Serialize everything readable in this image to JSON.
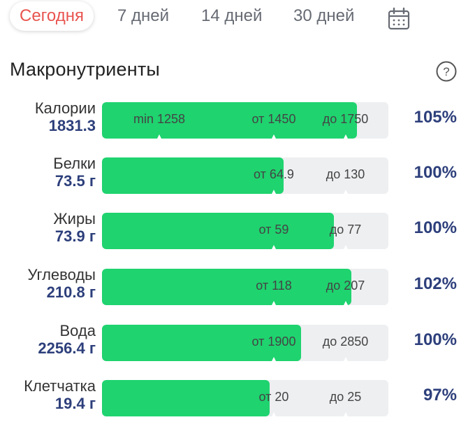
{
  "tabs": [
    {
      "label": "Сегодня",
      "active": true
    },
    {
      "label": "7 дней",
      "active": false
    },
    {
      "label": "14 дней",
      "active": false
    },
    {
      "label": "30 дней",
      "active": false
    }
  ],
  "section": {
    "title": "Макронутриенты"
  },
  "icons": {
    "calendar": "calendar-icon",
    "help": "help-icon"
  },
  "colors": {
    "accent": "#e8544f",
    "fill": "#1fd36f",
    "value": "#2d3f7b",
    "track": "#eeeff1"
  },
  "nutrients": [
    {
      "name": "Калории",
      "value": "1831.3",
      "percent": "105%",
      "fill_fraction": 0.89,
      "markers": [
        {
          "text": "min 1258",
          "pos": 0.2
        },
        {
          "text": "от 1450",
          "pos": 0.6
        },
        {
          "text": "до 1750",
          "pos": 0.85
        }
      ]
    },
    {
      "name": "Белки",
      "value": "73.5 г",
      "percent": "100%",
      "fill_fraction": 0.635,
      "markers": [
        {
          "text": "от 64.9",
          "pos": 0.6
        },
        {
          "text": "до 130",
          "pos": 0.85
        }
      ]
    },
    {
      "name": "Жиры",
      "value": "73.9 г",
      "percent": "100%",
      "fill_fraction": 0.81,
      "markers": [
        {
          "text": "от 59",
          "pos": 0.6
        },
        {
          "text": "до 77",
          "pos": 0.85
        }
      ]
    },
    {
      "name": "Углеводы",
      "value": "210.8 г",
      "percent": "102%",
      "fill_fraction": 0.87,
      "markers": [
        {
          "text": "от 118",
          "pos": 0.6
        },
        {
          "text": "до 207",
          "pos": 0.85
        }
      ]
    },
    {
      "name": "Вода",
      "value": "2256.4 г",
      "percent": "100%",
      "fill_fraction": 0.695,
      "markers": [
        {
          "text": "от 1900",
          "pos": 0.6
        },
        {
          "text": "до 2850",
          "pos": 0.85
        }
      ]
    },
    {
      "name": "Клетчатка",
      "value": "19.4 г",
      "percent": "97%",
      "fill_fraction": 0.585,
      "markers": [
        {
          "text": "от 20",
          "pos": 0.6
        },
        {
          "text": "до 25",
          "pos": 0.85
        }
      ]
    }
  ]
}
